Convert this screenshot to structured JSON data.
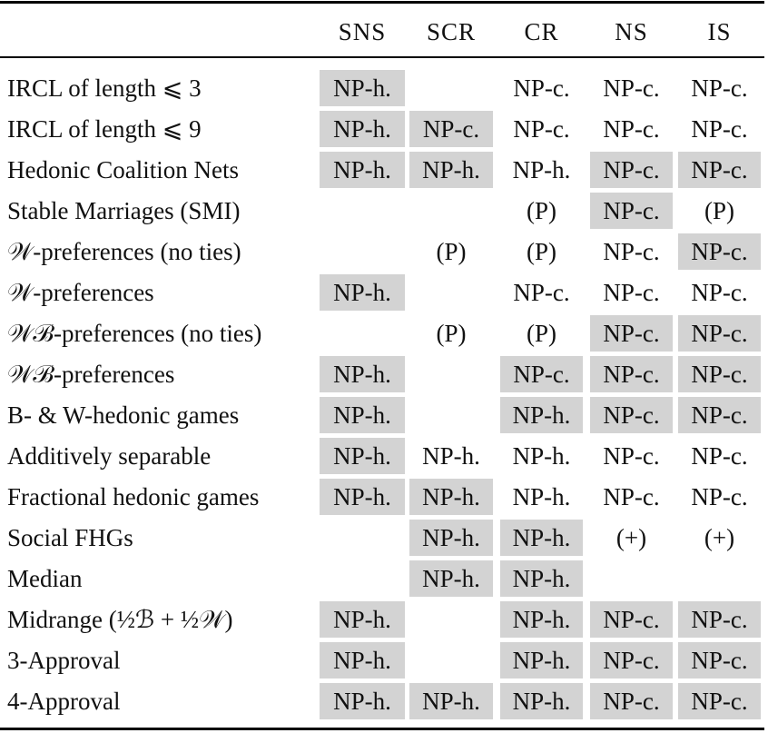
{
  "table": {
    "header": [
      "SNS",
      "SCR",
      "CR",
      "NS",
      "IS"
    ],
    "shade_color": "#d3d3d3",
    "rows": [
      {
        "label": "IRCL of length ⩽ 3",
        "cells": [
          {
            "text": "NP-h.",
            "shaded": true
          },
          null,
          {
            "text": "NP-c.",
            "shaded": false
          },
          {
            "text": "NP-c.",
            "shaded": false
          },
          {
            "text": "NP-c.",
            "shaded": false
          }
        ]
      },
      {
        "label": "IRCL of length ⩽ 9",
        "cells": [
          {
            "text": "NP-h.",
            "shaded": true
          },
          {
            "text": "NP-c.",
            "shaded": true
          },
          {
            "text": "NP-c.",
            "shaded": false
          },
          {
            "text": "NP-c.",
            "shaded": false
          },
          {
            "text": "NP-c.",
            "shaded": false
          }
        ]
      },
      {
        "label": "Hedonic Coalition Nets",
        "cells": [
          {
            "text": "NP-h.",
            "shaded": true
          },
          {
            "text": "NP-h.",
            "shaded": true
          },
          {
            "text": "NP-h.",
            "shaded": false
          },
          {
            "text": "NP-c.",
            "shaded": true
          },
          {
            "text": "NP-c.",
            "shaded": true
          }
        ]
      },
      {
        "label": "Stable Marriages (SMI)",
        "cells": [
          null,
          null,
          {
            "text": "(P)",
            "shaded": false
          },
          {
            "text": "NP-c.",
            "shaded": true
          },
          {
            "text": "(P)",
            "shaded": false
          }
        ]
      },
      {
        "label": "𝒲-preferences (no ties)",
        "cells": [
          null,
          {
            "text": "(P)",
            "shaded": false
          },
          {
            "text": "(P)",
            "shaded": false
          },
          {
            "text": "NP-c.",
            "shaded": false
          },
          {
            "text": "NP-c.",
            "shaded": true
          }
        ]
      },
      {
        "label": "𝒲-preferences",
        "cells": [
          {
            "text": "NP-h.",
            "shaded": true
          },
          null,
          {
            "text": "NP-c.",
            "shaded": false
          },
          {
            "text": "NP-c.",
            "shaded": false
          },
          {
            "text": "NP-c.",
            "shaded": false
          }
        ]
      },
      {
        "label": "𝒲ℬ-preferences (no ties)",
        "cells": [
          null,
          {
            "text": "(P)",
            "shaded": false
          },
          {
            "text": "(P)",
            "shaded": false
          },
          {
            "text": "NP-c.",
            "shaded": true
          },
          {
            "text": "NP-c.",
            "shaded": true
          }
        ]
      },
      {
        "label": "𝒲ℬ-preferences",
        "cells": [
          {
            "text": "NP-h.",
            "shaded": true
          },
          null,
          {
            "text": "NP-c.",
            "shaded": true
          },
          {
            "text": "NP-c.",
            "shaded": true
          },
          {
            "text": "NP-c.",
            "shaded": true
          }
        ]
      },
      {
        "label": "B- & W-hedonic games",
        "cells": [
          {
            "text": "NP-h.",
            "shaded": true
          },
          null,
          {
            "text": "NP-h.",
            "shaded": true
          },
          {
            "text": "NP-c.",
            "shaded": true
          },
          {
            "text": "NP-c.",
            "shaded": true
          }
        ]
      },
      {
        "label": "Additively separable",
        "cells": [
          {
            "text": "NP-h.",
            "shaded": true
          },
          {
            "text": "NP-h.",
            "shaded": false
          },
          {
            "text": "NP-h.",
            "shaded": false
          },
          {
            "text": "NP-c.",
            "shaded": false
          },
          {
            "text": "NP-c.",
            "shaded": false
          }
        ]
      },
      {
        "label": "Fractional hedonic games",
        "cells": [
          {
            "text": "NP-h.",
            "shaded": true
          },
          {
            "text": "NP-h.",
            "shaded": true
          },
          {
            "text": "NP-h.",
            "shaded": false
          },
          {
            "text": "NP-c.",
            "shaded": false
          },
          {
            "text": "NP-c.",
            "shaded": false
          }
        ]
      },
      {
        "label": "Social FHGs",
        "cells": [
          null,
          {
            "text": "NP-h.",
            "shaded": true
          },
          {
            "text": "NP-h.",
            "shaded": true
          },
          {
            "text": "(+)",
            "shaded": false
          },
          {
            "text": "(+)",
            "shaded": false
          }
        ]
      },
      {
        "label": "Median",
        "cells": [
          null,
          {
            "text": "NP-h.",
            "shaded": true
          },
          {
            "text": "NP-h.",
            "shaded": true
          },
          null,
          null
        ]
      },
      {
        "label": "Midrange (½ℬ + ½𝒲)",
        "cells": [
          {
            "text": "NP-h.",
            "shaded": true
          },
          null,
          {
            "text": "NP-h.",
            "shaded": true
          },
          {
            "text": "NP-c.",
            "shaded": true
          },
          {
            "text": "NP-c.",
            "shaded": true
          }
        ]
      },
      {
        "label": "3-Approval",
        "cells": [
          {
            "text": "NP-h.",
            "shaded": true
          },
          null,
          {
            "text": "NP-h.",
            "shaded": true
          },
          {
            "text": "NP-c.",
            "shaded": true
          },
          {
            "text": "NP-c.",
            "shaded": true
          }
        ]
      },
      {
        "label": "4-Approval",
        "cells": [
          {
            "text": "NP-h.",
            "shaded": true
          },
          {
            "text": "NP-h.",
            "shaded": true
          },
          {
            "text": "NP-h.",
            "shaded": true
          },
          {
            "text": "NP-c.",
            "shaded": true
          },
          {
            "text": "NP-c.",
            "shaded": true
          }
        ]
      }
    ]
  }
}
